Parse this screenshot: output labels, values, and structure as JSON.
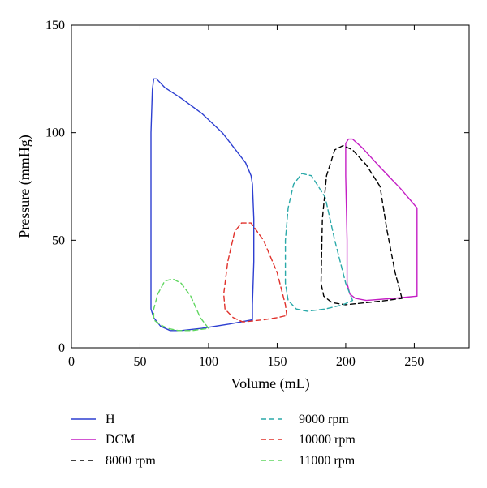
{
  "chart_data": {
    "type": "line",
    "xlabel": "Volume (mL)",
    "ylabel": "Pressure (mmHg)",
    "xlim": [
      0,
      290
    ],
    "ylim": [
      0,
      150
    ],
    "xticks": [
      0,
      50,
      100,
      150,
      200,
      250
    ],
    "yticks": [
      0,
      50,
      100,
      150
    ],
    "grid": false,
    "legend_position": "bottom",
    "series": [
      {
        "name": "H",
        "color": "#2d3fd1",
        "dash": "solid",
        "points": [
          [
            132,
            13
          ],
          [
            132,
            20
          ],
          [
            133,
            40
          ],
          [
            133,
            60
          ],
          [
            132,
            76
          ],
          [
            131,
            80
          ],
          [
            127,
            86
          ],
          [
            110,
            100
          ],
          [
            95,
            109
          ],
          [
            80,
            116
          ],
          [
            68,
            121
          ],
          [
            62,
            125
          ],
          [
            60,
            125
          ],
          [
            59,
            120
          ],
          [
            58,
            100
          ],
          [
            58,
            60
          ],
          [
            58,
            30
          ],
          [
            58,
            18
          ],
          [
            60,
            14
          ],
          [
            65,
            10
          ],
          [
            72,
            8
          ],
          [
            80,
            8
          ],
          [
            95,
            9
          ],
          [
            115,
            11
          ],
          [
            132,
            13
          ]
        ]
      },
      {
        "name": "DCM",
        "color": "#c41ec4",
        "dash": "solid",
        "points": [
          [
            252,
            24
          ],
          [
            252,
            40
          ],
          [
            252,
            65
          ],
          [
            240,
            74
          ],
          [
            225,
            84
          ],
          [
            212,
            93
          ],
          [
            205,
            97
          ],
          [
            202,
            97
          ],
          [
            200,
            95
          ],
          [
            200,
            80
          ],
          [
            201,
            50
          ],
          [
            201,
            30
          ],
          [
            203,
            25
          ],
          [
            207,
            23
          ],
          [
            215,
            22
          ],
          [
            235,
            23
          ],
          [
            252,
            24
          ]
        ]
      },
      {
        "name": "8000 rpm",
        "color": "#000000",
        "dash": "dashed",
        "points": [
          [
            241,
            23
          ],
          [
            236,
            35
          ],
          [
            230,
            55
          ],
          [
            225,
            75
          ],
          [
            215,
            85
          ],
          [
            205,
            92
          ],
          [
            198,
            94
          ],
          [
            192,
            92
          ],
          [
            186,
            80
          ],
          [
            183,
            60
          ],
          [
            182,
            30
          ],
          [
            184,
            24
          ],
          [
            190,
            21
          ],
          [
            200,
            20
          ],
          [
            215,
            21
          ],
          [
            230,
            22
          ],
          [
            241,
            23
          ]
        ]
      },
      {
        "name": "9000 rpm",
        "color": "#2aa9a9",
        "dash": "dashed",
        "points": [
          [
            205,
            22
          ],
          [
            200,
            30
          ],
          [
            192,
            50
          ],
          [
            185,
            70
          ],
          [
            175,
            80
          ],
          [
            168,
            81
          ],
          [
            162,
            76
          ],
          [
            158,
            65
          ],
          [
            156,
            50
          ],
          [
            156,
            30
          ],
          [
            158,
            22
          ],
          [
            164,
            18
          ],
          [
            172,
            17
          ],
          [
            185,
            18
          ],
          [
            198,
            20
          ],
          [
            205,
            22
          ]
        ]
      },
      {
        "name": "10000 rpm",
        "color": "#e0302a",
        "dash": "dashed",
        "points": [
          [
            157,
            15
          ],
          [
            156,
            20
          ],
          [
            150,
            35
          ],
          [
            140,
            50
          ],
          [
            131,
            58
          ],
          [
            124,
            58
          ],
          [
            119,
            54
          ],
          [
            114,
            40
          ],
          [
            111,
            25
          ],
          [
            112,
            18
          ],
          [
            118,
            14
          ],
          [
            125,
            12
          ],
          [
            140,
            13
          ],
          [
            150,
            14
          ],
          [
            157,
            15
          ]
        ]
      },
      {
        "name": "11000 rpm",
        "color": "#5fd65f",
        "dash": "dashed",
        "points": [
          [
            100,
            9
          ],
          [
            94,
            14
          ],
          [
            87,
            24
          ],
          [
            80,
            30
          ],
          [
            74,
            32
          ],
          [
            68,
            31
          ],
          [
            63,
            25
          ],
          [
            60,
            18
          ],
          [
            60,
            13
          ],
          [
            64,
            11
          ],
          [
            70,
            9
          ],
          [
            78,
            8
          ],
          [
            88,
            8
          ],
          [
            100,
            9
          ]
        ]
      }
    ]
  }
}
